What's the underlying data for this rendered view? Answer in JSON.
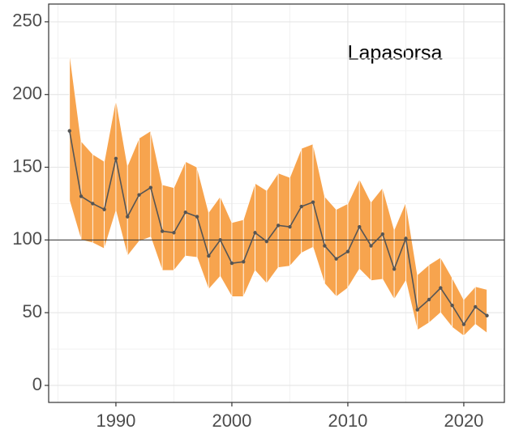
{
  "chart_data": {
    "type": "line",
    "annotation": "Lapasorsa",
    "x": [
      1986,
      1987,
      1988,
      1989,
      1990,
      1991,
      1992,
      1993,
      1994,
      1995,
      1996,
      1997,
      1998,
      1999,
      2000,
      2001,
      2002,
      2003,
      2004,
      2005,
      2006,
      2007,
      2008,
      2009,
      2010,
      2011,
      2012,
      2013,
      2014,
      2015,
      2016,
      2017,
      2018,
      2019,
      2020,
      2021,
      2022
    ],
    "values": [
      175,
      130,
      125,
      121,
      156,
      116,
      131,
      136,
      106,
      105,
      119,
      116,
      89,
      100,
      84,
      85,
      105,
      99,
      110,
      109,
      123,
      126,
      96,
      87,
      92,
      109,
      96,
      104,
      80,
      101,
      52,
      59,
      67,
      55,
      42,
      54,
      48
    ],
    "upper": [
      229,
      168,
      159,
      154,
      197,
      151,
      170,
      175,
      138,
      136,
      154,
      150,
      119,
      130,
      112,
      114,
      139,
      134,
      146,
      143,
      163,
      166,
      130,
      121,
      125,
      142,
      126,
      136,
      107,
      126,
      76,
      83,
      88,
      74,
      59,
      68,
      66
    ],
    "lower": [
      127,
      100,
      98,
      94,
      120,
      89,
      99,
      102,
      79,
      79,
      89,
      88,
      66,
      75,
      61,
      61,
      79,
      70,
      81,
      82,
      91,
      95,
      70,
      61,
      67,
      80,
      72,
      73,
      59,
      72,
      38,
      43,
      50,
      40,
      34,
      42,
      36
    ],
    "color": "#555555",
    "band_color": "#f7a44e",
    "reference_line": 100,
    "xlim": [
      1984.2,
      2023.5
    ],
    "xticks": [
      1990,
      2000,
      2010,
      2020
    ],
    "ylim": [
      -11.7,
      262.2
    ],
    "yticks": [
      0,
      50,
      100,
      150,
      200,
      250
    ],
    "grid": true,
    "minor_grid": true
  }
}
